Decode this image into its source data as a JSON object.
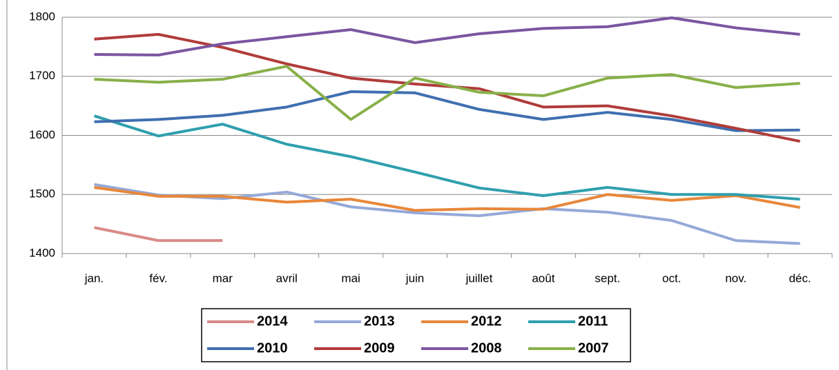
{
  "chart_data": {
    "type": "line",
    "categories": [
      "jan.",
      "fév.",
      "mar",
      "avril",
      "mai",
      "juin",
      "juillet",
      "août",
      "sept.",
      "oct.",
      "nov.",
      "déc."
    ],
    "series": [
      {
        "name": "2014",
        "color": "#d98a86",
        "values": [
          1444,
          1422,
          1422,
          null,
          null,
          null,
          null,
          null,
          null,
          null,
          null,
          null
        ]
      },
      {
        "name": "2013",
        "color": "#95a9d8",
        "values": [
          1517,
          1499,
          1493,
          1504,
          1479,
          1469,
          1464,
          1476,
          1470,
          1456,
          1422,
          1417
        ]
      },
      {
        "name": "2012",
        "color": "#e8873a",
        "values": [
          1512,
          1497,
          1497,
          1487,
          1492,
          1473,
          1476,
          1475,
          1500,
          1490,
          1498,
          1478
        ]
      },
      {
        "name": "2011",
        "color": "#2f9fae",
        "values": [
          1633,
          1599,
          1619,
          1585,
          1564,
          1538,
          1511,
          1498,
          1512,
          1500,
          1500,
          1492
        ]
      },
      {
        "name": "2010",
        "color": "#3f6fb0",
        "values": [
          1623,
          1627,
          1634,
          1648,
          1674,
          1672,
          1644,
          1627,
          1639,
          1627,
          1608,
          1609
        ]
      },
      {
        "name": "2009",
        "color": "#b03c3a",
        "values": [
          1763,
          1771,
          1749,
          1721,
          1697,
          1687,
          1679,
          1648,
          1650,
          1633,
          1612,
          1590
        ]
      },
      {
        "name": "2008",
        "color": "#7a56a0",
        "values": [
          1737,
          1736,
          1755,
          1767,
          1779,
          1757,
          1772,
          1781,
          1784,
          1799,
          1782,
          1771
        ]
      },
      {
        "name": "2007",
        "color": "#88b049",
        "values": [
          1695,
          1690,
          1695,
          1717,
          1627,
          1697,
          1673,
          1667,
          1697,
          1703,
          1681,
          1688
        ]
      }
    ],
    "ylim": [
      1400,
      1800
    ],
    "yticks": [
      1400,
      1500,
      1600,
      1700,
      1800
    ],
    "grid": true
  }
}
